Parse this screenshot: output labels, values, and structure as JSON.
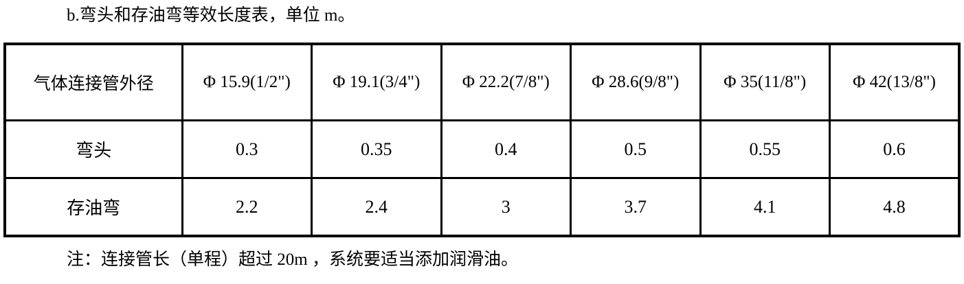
{
  "page": {
    "title": "b.弯头和存油弯等效长度表，单位 m。",
    "note": "注：连接管长（单程）超过 20m ，系统要适当添加润滑油。"
  },
  "table": {
    "corner_header": "气体连接管外径",
    "columns": [
      "Φ 15.9(1/2\")",
      "Φ 19.1(3/4\")",
      "Φ 22.2(7/8\")",
      "Φ 28.6(9/8\")",
      "Φ 35(11/8\")",
      "Φ 42(13/8\")"
    ],
    "rows": [
      {
        "label": "弯头",
        "values": [
          "0.3",
          "0.35",
          "0.4",
          "0.5",
          "0.55",
          "0.6"
        ]
      },
      {
        "label": "存油弯",
        "values": [
          "2.2",
          "2.4",
          "3",
          "3.7",
          "4.1",
          "4.8"
        ]
      }
    ]
  },
  "colors": {
    "text": "#000000",
    "border": "#000000",
    "background": "#ffffff"
  }
}
